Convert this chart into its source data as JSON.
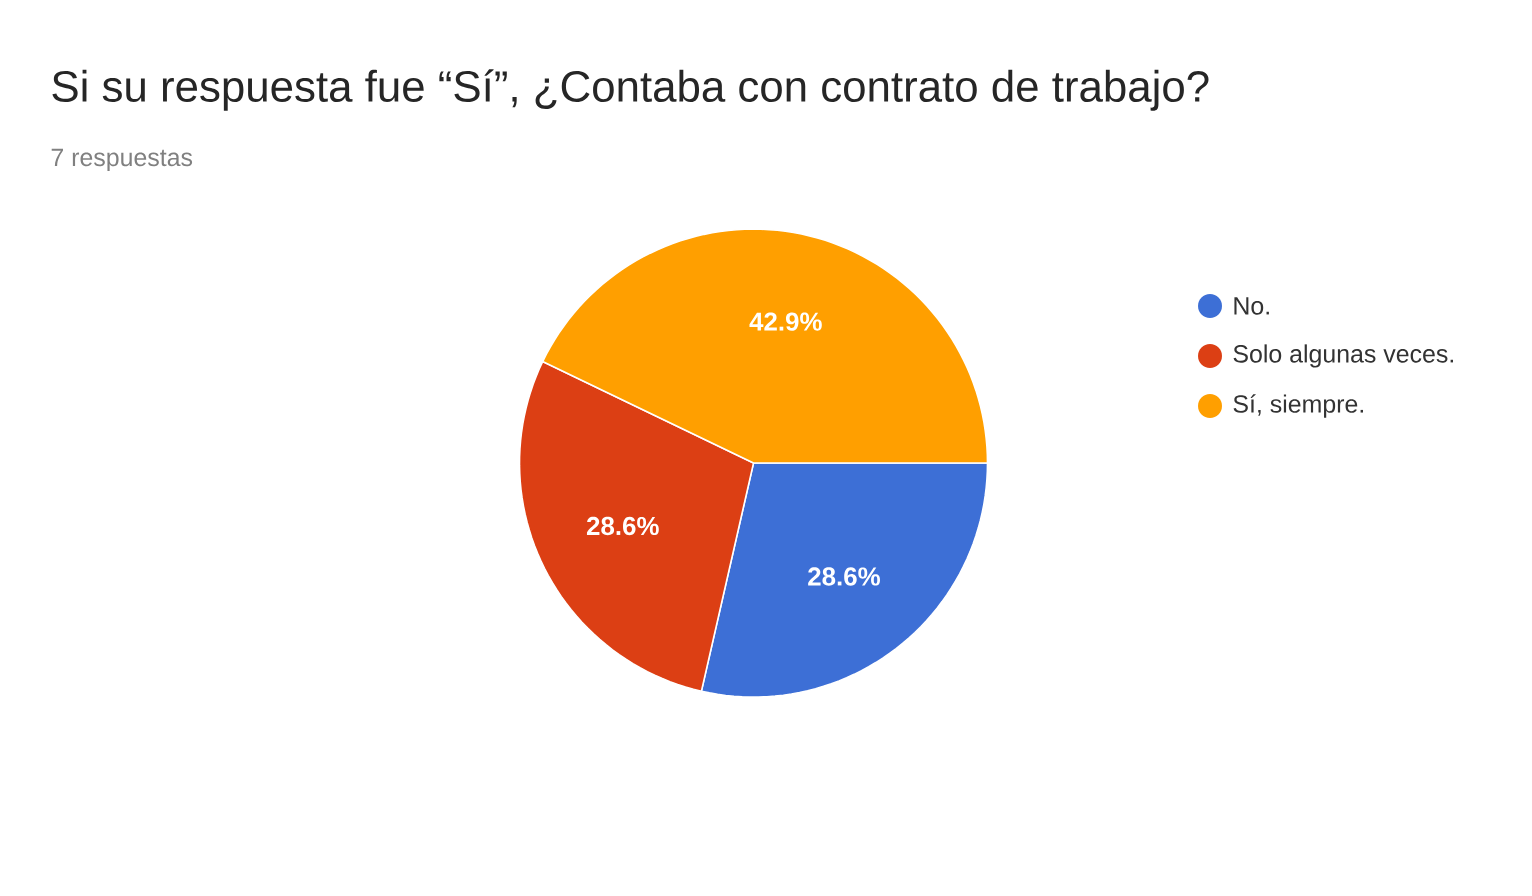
{
  "chart_data": {
    "type": "pie",
    "title": "Si su respuesta fue “Sí”, ¿Contaba con contrato de trabajo?",
    "subtitle": "7 respuestas",
    "categories": [
      "No.",
      "Solo algunas veces.",
      "Sí, siempre."
    ],
    "values": [
      28.6,
      28.6,
      42.9
    ],
    "value_labels": [
      "28.6%",
      "28.6%",
      "42.9%"
    ],
    "colors": [
      "#3d6fd6",
      "#dc3f14",
      "#ff9f00"
    ],
    "legend": "right"
  }
}
